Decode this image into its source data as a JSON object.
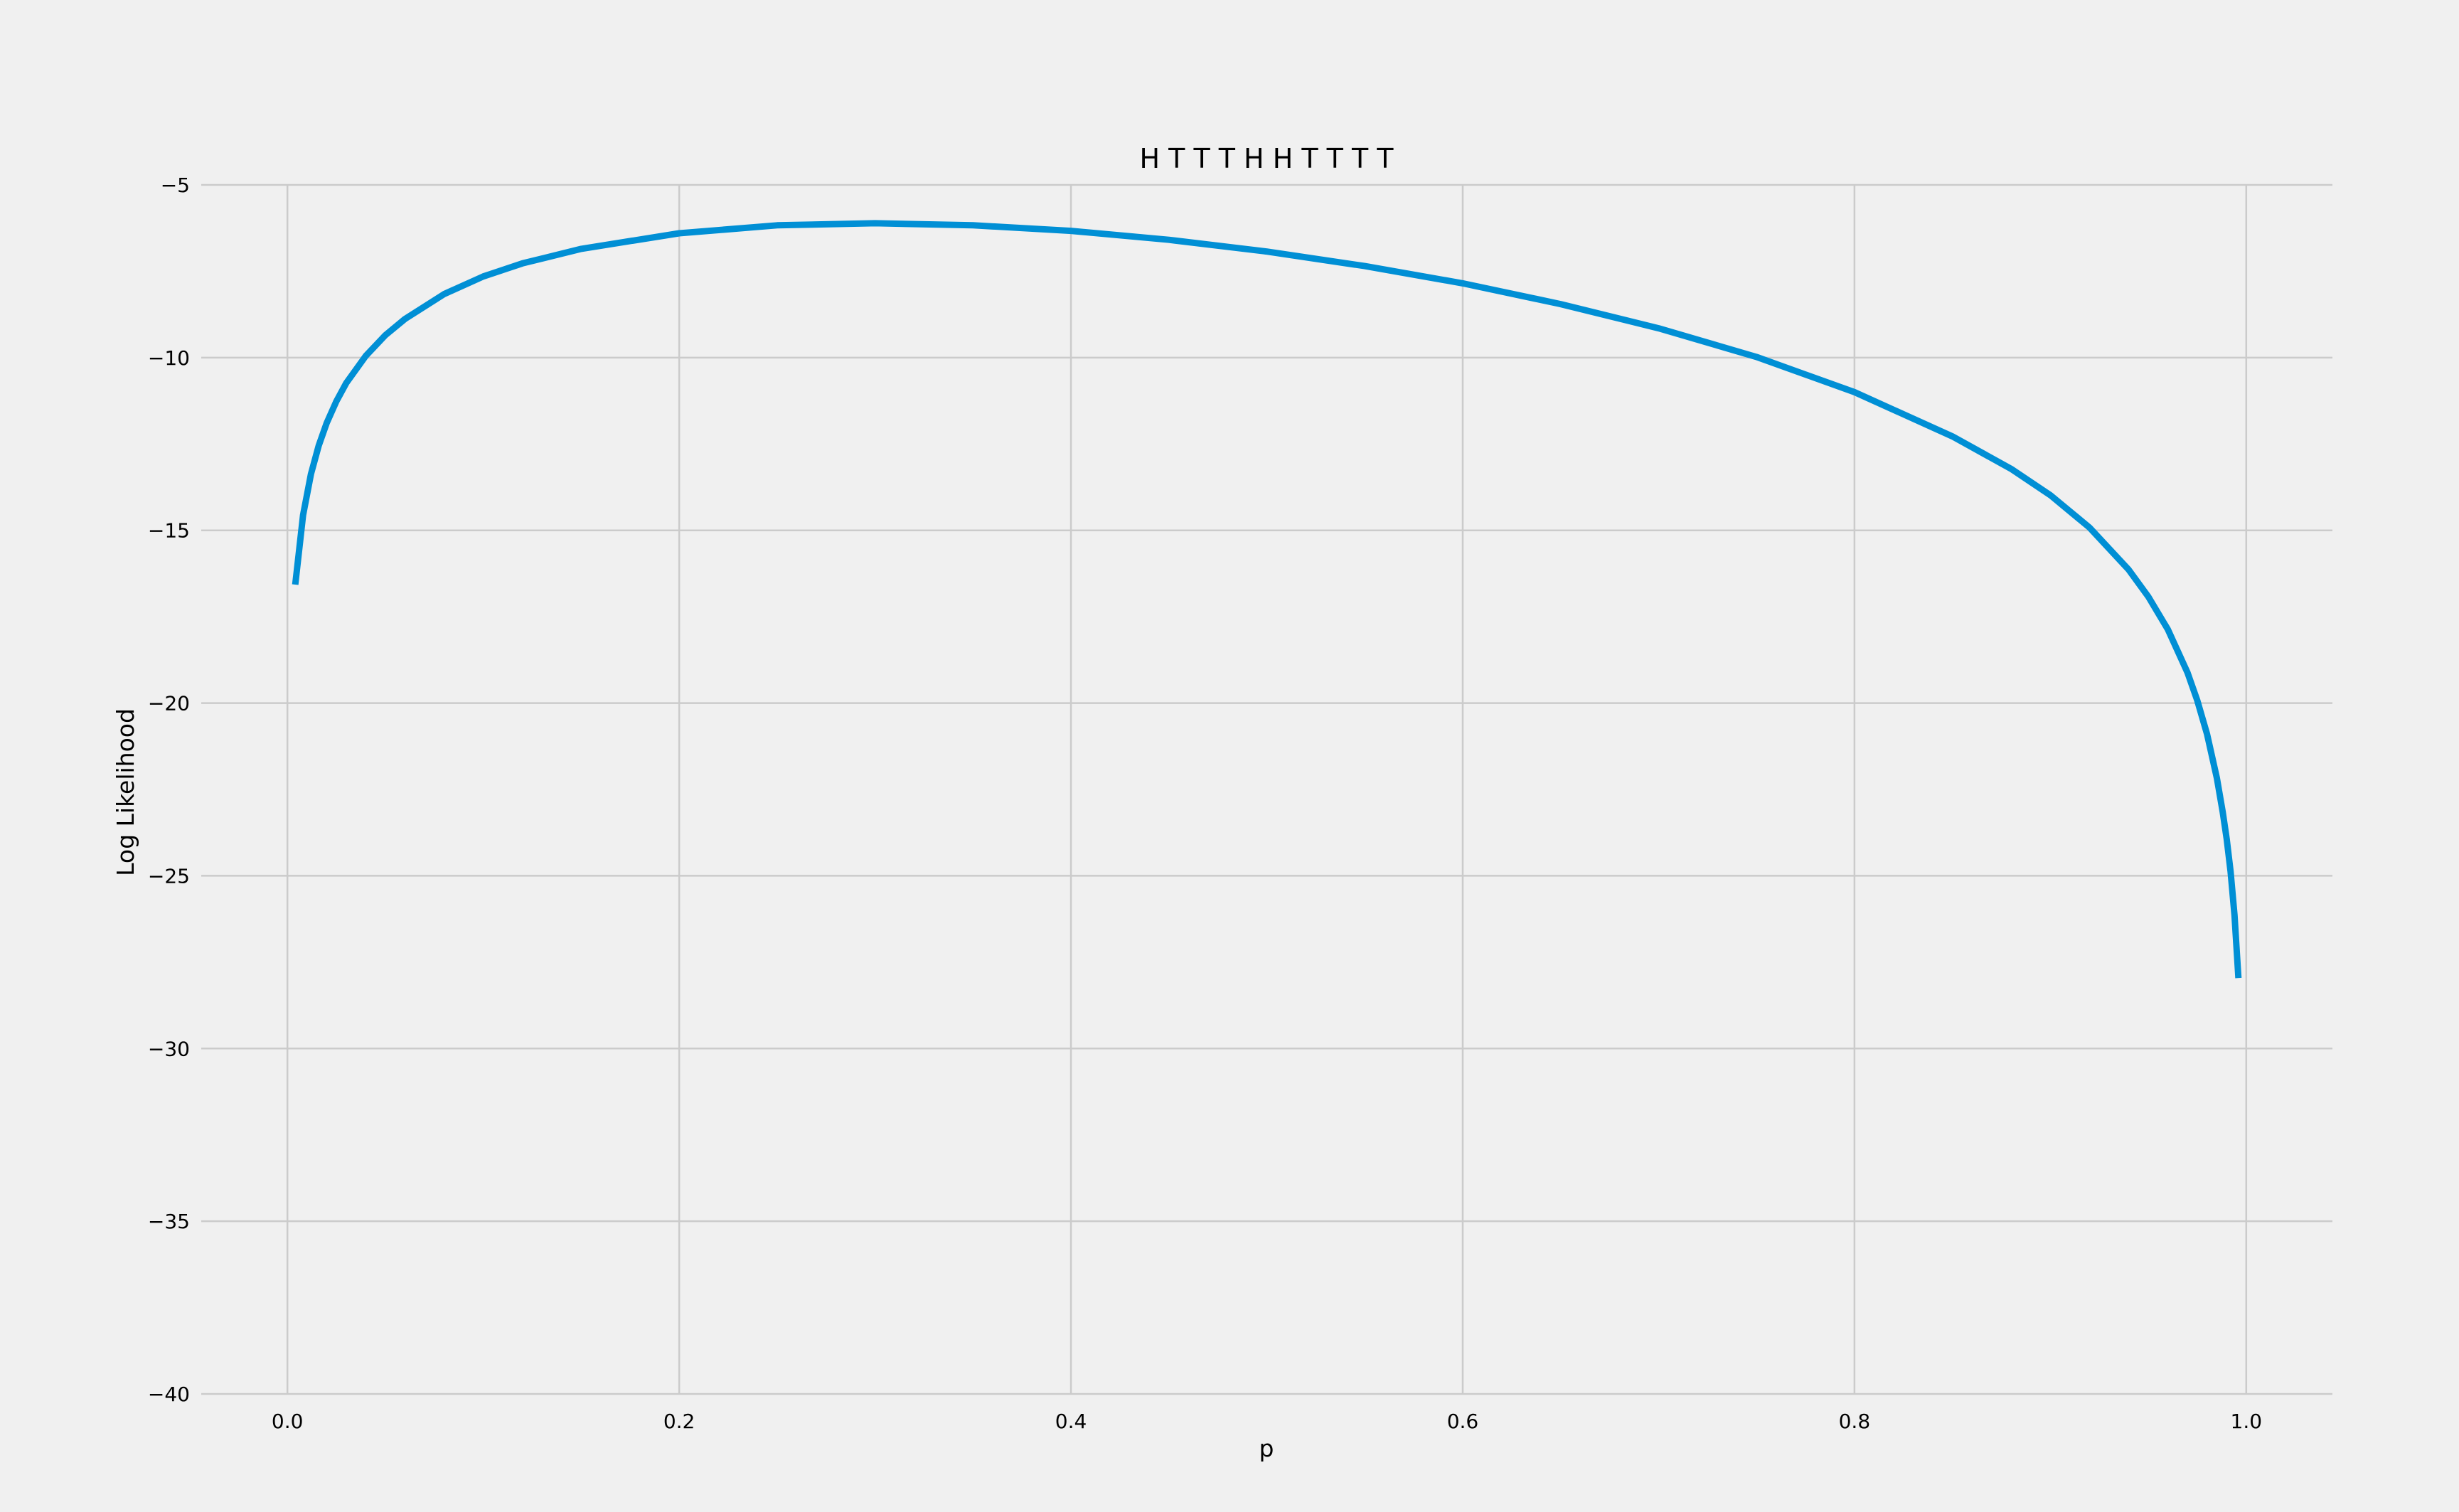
{
  "chart_data": {
    "type": "line",
    "title": "H T T T H H T T T T",
    "xlabel": "p",
    "ylabel": "Log Likelihood",
    "xlim": [
      -0.044,
      1.044
    ],
    "ylim": [
      -40,
      -5
    ],
    "xticks": [
      0.0,
      0.2,
      0.4,
      0.6,
      0.8,
      1.0
    ],
    "xtick_labels": [
      "0.0",
      "0.2",
      "0.4",
      "0.6",
      "0.8",
      "1.0"
    ],
    "yticks": [
      -5,
      -10,
      -15,
      -20,
      -25,
      -30,
      -35,
      -40
    ],
    "ytick_labels": [
      "−5",
      "−10",
      "−15",
      "−20",
      "−25",
      "−30",
      "−35",
      "−40"
    ],
    "grid": true,
    "line_color": "#008fd5",
    "background_color": "#f0f0f0",
    "grid_color": "#cbcbcb",
    "series": [
      {
        "x": [
          0.004,
          0.008,
          0.012,
          0.016,
          0.02,
          0.025,
          0.03,
          0.04,
          0.05,
          0.06,
          0.08,
          0.1,
          0.12,
          0.15,
          0.2,
          0.25,
          0.3,
          0.35,
          0.4,
          0.45,
          0.5,
          0.55,
          0.6,
          0.65,
          0.7,
          0.75,
          0.8,
          0.85,
          0.88,
          0.9,
          0.92,
          0.94,
          0.95,
          0.96,
          0.97,
          0.975,
          0.98,
          0.985,
          0.988,
          0.99,
          0.992,
          0.994,
          0.996
        ],
        "y": [
          -16.57,
          -14.56,
          -13.37,
          -12.54,
          -11.9,
          -11.26,
          -10.74,
          -9.95,
          -9.35,
          -8.88,
          -8.16,
          -7.65,
          -7.27,
          -6.85,
          -6.4,
          -6.17,
          -6.11,
          -6.17,
          -6.33,
          -6.59,
          -6.93,
          -7.35,
          -7.85,
          -8.45,
          -9.15,
          -9.98,
          -11.0,
          -12.28,
          -13.22,
          -13.98,
          -14.92,
          -16.14,
          -16.92,
          -17.87,
          -19.12,
          -19.92,
          -20.9,
          -22.17,
          -23.15,
          -23.93,
          -24.88,
          -26.14,
          -27.96
        ]
      }
    ]
  }
}
